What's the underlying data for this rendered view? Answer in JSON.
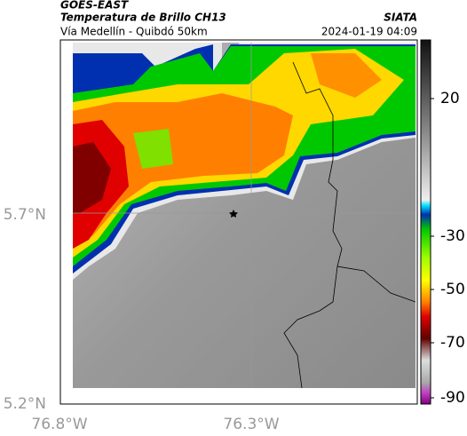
{
  "header": {
    "satellite": "GOES-EAST",
    "product": "Temperatura de Brillo CH13",
    "source": "SIATA",
    "route": "Vía Medellín - Quibdó 50km",
    "timestamp": "2024-01-19 04:09"
  },
  "axes": {
    "latitude_labels": [
      "5.7°N",
      "5.2°N"
    ],
    "longitude_labels": [
      "76.8°W",
      "76.3°W"
    ]
  },
  "colorbar": {
    "labels": [
      "20",
      "-30",
      "-50",
      "-70",
      "-90"
    ]
  }
}
